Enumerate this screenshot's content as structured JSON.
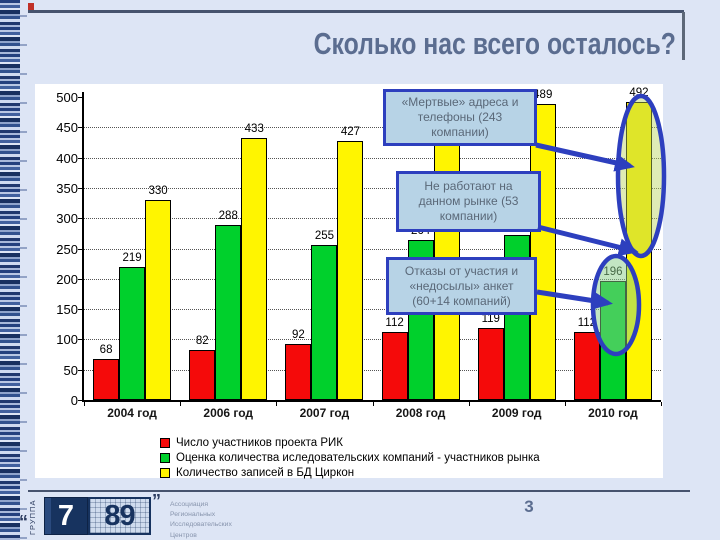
{
  "slide": {
    "title": "Сколько нас всего осталось?",
    "page_number": "3"
  },
  "chart_data": {
    "type": "bar",
    "title": "",
    "categories": [
      "2004 год",
      "2006 год",
      "2007 год",
      "2008 год",
      "2009 год",
      "2010 год"
    ],
    "series": [
      {
        "name": "Число участников проекта РИК",
        "color": "#f50a0a",
        "values": [
          68,
          82,
          92,
          112,
          119,
          112
        ],
        "labels": [
          "68",
          "82",
          "92",
          "112",
          "119",
          "112"
        ]
      },
      {
        "name": "Оценка количества иследовательских компаний - участников рынка",
        "color": "#00d02c",
        "values": [
          219,
          288,
          255,
          264,
          272,
          196
        ],
        "labels": [
          "219",
          "288",
          "255",
          "264",
          "272",
          "196"
        ]
      },
      {
        "name": "Количество записей в БД Циркон",
        "color": "#fff500",
        "values": [
          330,
          433,
          427,
          480,
          489,
          492
        ],
        "labels": [
          "330",
          "433",
          "427",
          "",
          "489",
          "492"
        ]
      }
    ],
    "ylim": [
      0,
      500
    ],
    "ytick_step": 50,
    "grid": "dotted-horizontal",
    "legend_position": "bottom"
  },
  "annotations": {
    "callouts": [
      {
        "text": "«Мертвые» адреса и телефоны (243 компании)"
      },
      {
        "text": "Не работают на данном рынке (53 компании)"
      },
      {
        "text": "Отказы от участия и «недосылы» анкет (60+14 компаний)"
      }
    ]
  },
  "footer": {
    "logo_group_label": "ГРУППА",
    "logo_7": "7",
    "logo_89": "89",
    "quote_open": "“",
    "quote_close": "”",
    "org_lines": [
      "Ассоциация",
      "Региональных",
      "Исследовательских",
      "Центров"
    ]
  },
  "colors": {
    "accent_blue": "#2d3fbe",
    "callout_fill": "#b7d3e6",
    "title_color": "#5b6d90",
    "rule_color": "#46536e",
    "ellipse_large_fill": "rgba(185,210,90,0.45)",
    "ellipse_small_fill": "rgba(135,205,135,0.5)"
  }
}
